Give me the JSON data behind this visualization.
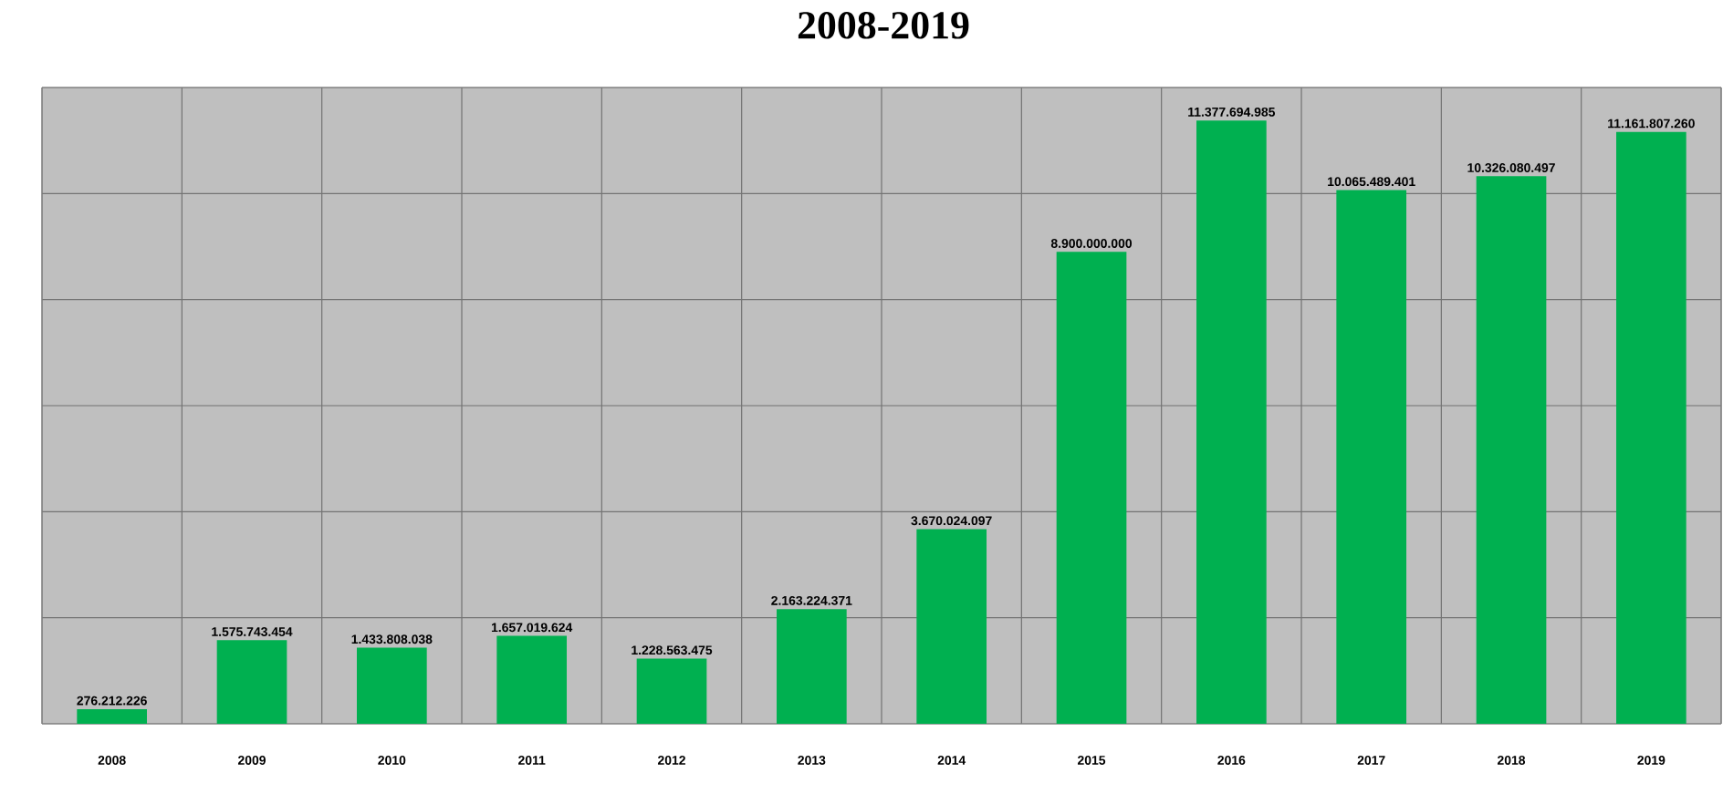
{
  "chart_data": {
    "type": "bar",
    "title": "2008-2019",
    "categories": [
      "2008",
      "2009",
      "2010",
      "2011",
      "2012",
      "2013",
      "2014",
      "2015",
      "2016",
      "2017",
      "2018",
      "2019"
    ],
    "values": [
      276212226,
      1575743454,
      1433808038,
      1657019624,
      1228563475,
      2163224371,
      3670024097,
      8900000000,
      11377694985,
      10065489401,
      10326080497,
      11161807260
    ],
    "value_labels": [
      "276.212.226",
      "1.575.743.454",
      "1.433.808.038",
      "1.657.019.624",
      "1.228.563.475",
      "2.163.224.371",
      "3.670.024.097",
      "8.900.000.000",
      "11.377.694.985",
      "10.065.489.401",
      "10.326.080.497",
      "11.161.807.260"
    ],
    "color": "#00b050",
    "ylim": [
      0,
      12000000000
    ],
    "yticks": [
      {
        "value": 0,
        "label": null
      },
      {
        "value": 2000000000,
        "label": null
      },
      {
        "value": 4000000000,
        "label": null
      },
      {
        "value": 6000000000,
        "label": null
      },
      {
        "value": 8000000000,
        "label": null
      },
      {
        "value": 10000000000,
        "label": null
      },
      {
        "value": 12000000000,
        "label": null
      }
    ],
    "tick_labels": "x",
    "grid": true
  }
}
